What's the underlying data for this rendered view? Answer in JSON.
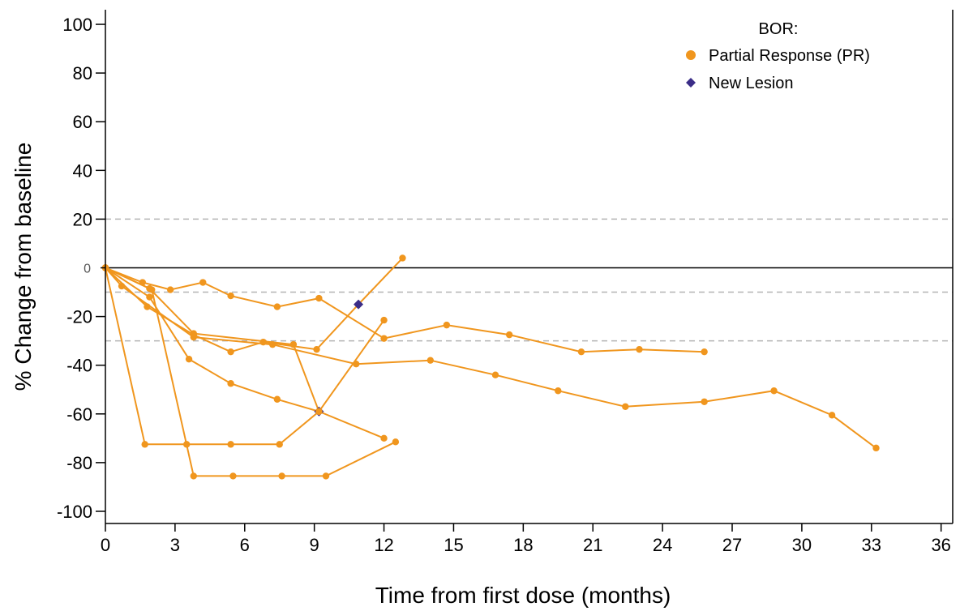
{
  "chart_data": {
    "type": "line",
    "xlabel": "Time from first dose (months)",
    "ylabel": "% Change from baseline",
    "xlim": [
      0,
      36.5
    ],
    "ylim": [
      -105,
      106
    ],
    "x_ticks": [
      0,
      3,
      6,
      9,
      12,
      15,
      18,
      21,
      24,
      27,
      30,
      33,
      36
    ],
    "y_ticks": [
      -100,
      -80,
      -60,
      -40,
      -20,
      0,
      20,
      40,
      60,
      80,
      100
    ],
    "reference_lines": [
      {
        "y": 20,
        "style": "dashed"
      },
      {
        "y": -10,
        "style": "dashed"
      },
      {
        "y": -30,
        "style": "dashed"
      },
      {
        "y": 0,
        "style": "solid"
      }
    ],
    "legend": {
      "title": "BOR:",
      "position": "top-right",
      "entries": [
        {
          "label": "Partial Response (PR)",
          "marker": "circle",
          "color": "#f0961e"
        },
        {
          "label": "New Lesion",
          "marker": "diamond",
          "color": "#3b2d87"
        }
      ]
    },
    "line_color": "#f0961e",
    "new_lesion_color": "#3b2d87",
    "series": [
      {
        "points": [
          [
            0,
            0
          ],
          [
            1.6,
            -6
          ],
          [
            2.8,
            -9
          ],
          [
            4.2,
            -6
          ],
          [
            5.4,
            -11.5
          ],
          [
            7.4,
            -16
          ],
          [
            9.2,
            -12.5
          ],
          [
            12,
            -29
          ],
          [
            14.7,
            -23.5
          ],
          [
            17.4,
            -27.5
          ],
          [
            20.5,
            -34.5
          ],
          [
            23,
            -33.5
          ],
          [
            25.8,
            -34.5
          ]
        ]
      },
      {
        "points": [
          [
            0,
            0
          ],
          [
            1.8,
            -16
          ],
          [
            3.8,
            -27.5
          ],
          [
            5.4,
            -34.5
          ],
          [
            6.8,
            -30.5
          ],
          [
            9.1,
            -33.5
          ],
          [
            10.9,
            -15
          ],
          [
            12.8,
            4
          ]
        ],
        "new_lesion_x": 10.9
      },
      {
        "points": [
          [
            0,
            0
          ],
          [
            0.7,
            -7.5
          ],
          [
            3.8,
            -28.5
          ],
          [
            7.2,
            -31.5
          ],
          [
            10.8,
            -39.5
          ],
          [
            14,
            -38
          ],
          [
            16.8,
            -44
          ],
          [
            19.5,
            -50.5
          ],
          [
            22.4,
            -57
          ],
          [
            25.8,
            -55
          ],
          [
            28.8,
            -50.5
          ],
          [
            31.3,
            -60.5
          ],
          [
            33.2,
            -74
          ]
        ]
      },
      {
        "points": [
          [
            0,
            0
          ],
          [
            1.9,
            -12
          ],
          [
            3.6,
            -37.5
          ],
          [
            5.4,
            -47.5
          ],
          [
            7.4,
            -54
          ],
          [
            9.2,
            -59
          ],
          [
            12,
            -21.5
          ]
        ],
        "new_lesion_x": 9.2
      },
      {
        "points": [
          [
            0,
            0
          ],
          [
            1.9,
            -8.5
          ],
          [
            3.8,
            -27
          ],
          [
            8.1,
            -31.5
          ],
          [
            9.2,
            -59
          ],
          [
            12,
            -70
          ]
        ]
      },
      {
        "points": [
          [
            0,
            0
          ],
          [
            1.7,
            -72.5
          ],
          [
            3.5,
            -72.5
          ],
          [
            5.4,
            -72.5
          ],
          [
            7.5,
            -72.5
          ],
          [
            9.2,
            -59
          ]
        ]
      },
      {
        "points": [
          [
            0,
            0
          ],
          [
            2,
            -9
          ],
          [
            3.8,
            -85.5
          ],
          [
            5.5,
            -85.5
          ],
          [
            7.6,
            -85.5
          ],
          [
            9.5,
            -85.5
          ],
          [
            12.5,
            -71.5
          ]
        ]
      }
    ]
  }
}
